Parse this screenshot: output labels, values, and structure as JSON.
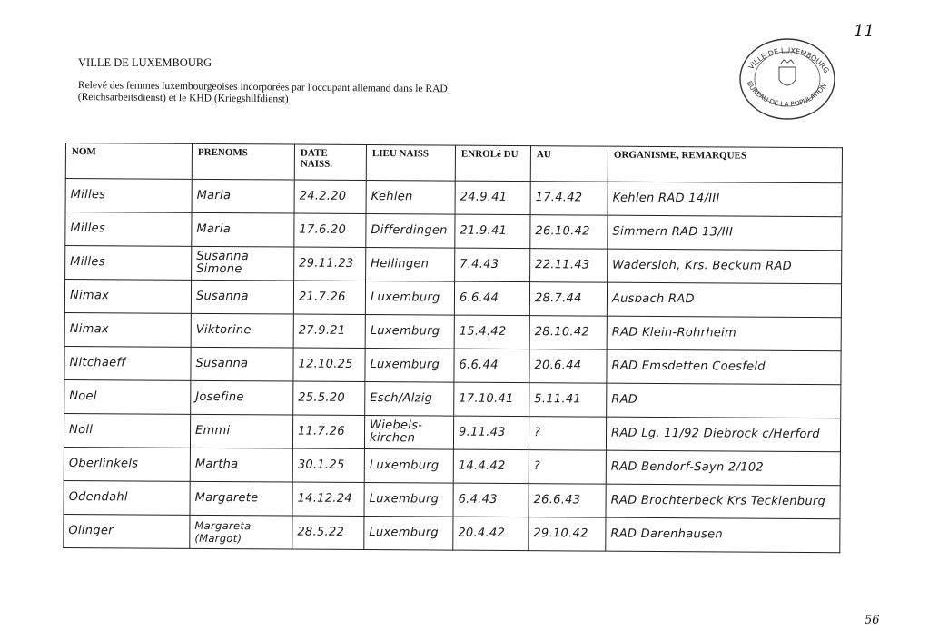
{
  "header": {
    "title": "VILLE DE LUXEMBOURG",
    "subtitle": "Relevé des femmes luxembourgeoises incorporées par l'occupant allemand dans le RAD (Reichsarbeitsdienst) et le KHD (Kriegshilfdienst)",
    "page_number": "11",
    "footer_number": "56"
  },
  "stamp": {
    "text_top": "VILLE DE LUXEMBOURG",
    "text_bottom": "BUREAU DE LA POPULATION"
  },
  "table": {
    "columns": [
      "NOM",
      "PRENOMS",
      "DATE NAISS.",
      "LIEU NAISS",
      "ENROLé DU",
      "AU",
      "ORGANISME, REMARQUES"
    ],
    "rows": [
      [
        "Milles",
        "Maria",
        "24.2.20",
        "Kehlen",
        "24.9.41",
        "17.4.42",
        "Kehlen RAD 14/III"
      ],
      [
        "Milles",
        "Maria",
        "17.6.20",
        "Differdingen",
        "21.9.41",
        "26.10.42",
        "Simmern RAD 13/III"
      ],
      [
        "Milles",
        "Susanna Simone",
        "29.11.23",
        "Hellingen",
        "7.4.43",
        "22.11.43",
        "Wadersloh, Krs. Beckum RAD"
      ],
      [
        "Nimax",
        "Susanna",
        "21.7.26",
        "Luxemburg",
        "6.6.44",
        "28.7.44",
        "Ausbach RAD"
      ],
      [
        "Nimax",
        "Viktorine",
        "27.9.21",
        "Luxemburg",
        "15.4.42",
        "28.10.42",
        "RAD Klein-Rohrheim"
      ],
      [
        "Nitchaeff",
        "Susanna",
        "12.10.25",
        "Luxemburg",
        "6.6.44",
        "20.6.44",
        "RAD Emsdetten Coesfeld"
      ],
      [
        "Noel",
        "Josefine",
        "25.5.20",
        "Esch/Alzig",
        "17.10.41",
        "5.11.41",
        "RAD"
      ],
      [
        "Noll",
        "Emmi",
        "11.7.26",
        "Wiebels-kirchen",
        "9.11.43",
        "?",
        "RAD Lg. 11/92 Diebrock c/Herford"
      ],
      [
        "Oberlinkels",
        "Martha",
        "30.1.25",
        "Luxemburg",
        "14.4.42",
        "?",
        "RAD Bendorf-Sayn 2/102"
      ],
      [
        "Odendahl",
        "Margarete",
        "14.12.24",
        "Luxemburg",
        "6.4.43",
        "26.6.43",
        "RAD Brochterbeck Krs Tecklenburg"
      ],
      [
        "Olinger",
        "Margareta (Margot)",
        "28.5.22",
        "Luxemburg",
        "20.4.42",
        "29.10.42",
        "RAD Darenhausen"
      ]
    ]
  }
}
